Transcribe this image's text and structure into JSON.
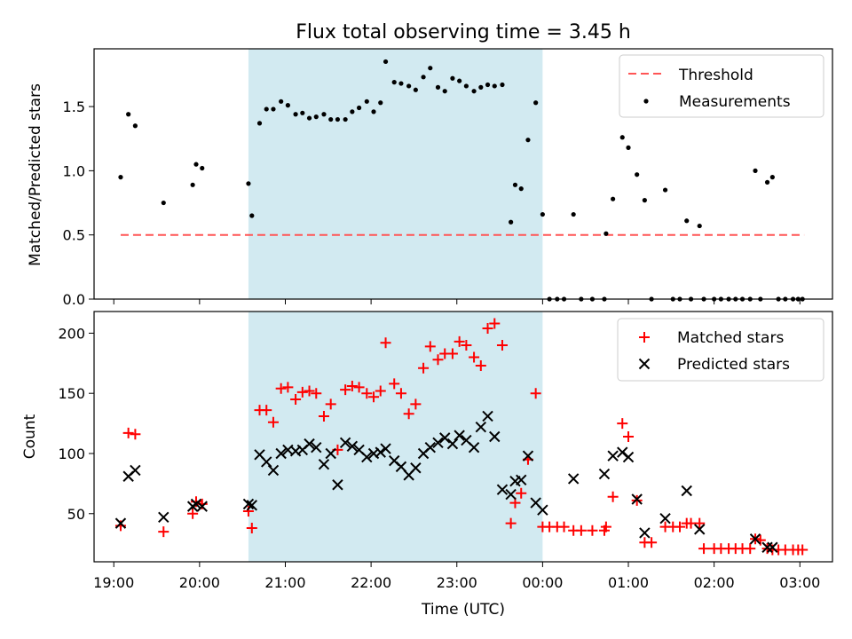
{
  "chart_data": {
    "title": "Flux total observing time = 3.45 h",
    "xlabel": "Time (UTC)",
    "xticks": [
      "19:00",
      "20:00",
      "21:00",
      "22:00",
      "23:00",
      "00:00",
      "01:00",
      "02:00",
      "03:00"
    ],
    "xlim_hours": [
      18.77,
      27.38
    ],
    "shaded_interval_hours": [
      20.57,
      24.0
    ],
    "shade_color": "#add8e6",
    "top": {
      "type": "scatter",
      "ylabel": "Matched/Predicted stars",
      "ylim": [
        0,
        1.95
      ],
      "yticks": [
        "0.0",
        "0.5",
        "1.0",
        "1.5"
      ],
      "legend_position": "upper right",
      "threshold": {
        "name": "Threshold",
        "value": 0.5,
        "x_range_hours": [
          19.08,
          27.05
        ],
        "color": "#ff5555"
      },
      "measurements": {
        "name": "Measurements",
        "color": "#000000",
        "x": [
          19.08,
          19.17,
          19.25,
          19.58,
          19.92,
          19.96,
          20.03,
          20.57,
          20.61,
          20.7,
          20.78,
          20.86,
          20.95,
          21.03,
          21.12,
          21.2,
          21.28,
          21.36,
          21.45,
          21.53,
          21.61,
          21.7,
          21.78,
          21.86,
          21.95,
          22.03,
          22.11,
          22.17,
          22.27,
          22.35,
          22.44,
          22.52,
          22.61,
          22.69,
          22.78,
          22.86,
          22.95,
          23.03,
          23.11,
          23.2,
          23.28,
          23.36,
          23.44,
          23.53,
          23.63,
          23.68,
          23.75,
          23.83,
          23.92,
          24.0,
          24.08,
          24.17,
          24.25,
          24.36,
          24.45,
          24.58,
          24.72,
          24.74,
          24.82,
          24.93,
          25.0,
          25.1,
          25.19,
          25.27,
          25.43,
          25.52,
          25.6,
          25.68,
          25.73,
          25.83,
          25.88,
          26.0,
          26.08,
          26.17,
          26.25,
          26.33,
          26.42,
          26.48,
          26.54,
          26.62,
          26.68,
          26.75,
          26.83,
          26.92,
          26.98,
          27.03
        ],
        "y": [
          0.95,
          1.44,
          1.35,
          0.75,
          0.89,
          1.05,
          1.02,
          0.9,
          0.65,
          1.37,
          1.48,
          1.48,
          1.54,
          1.51,
          1.44,
          1.45,
          1.41,
          1.42,
          1.44,
          1.4,
          1.4,
          1.4,
          1.46,
          1.49,
          1.54,
          1.46,
          1.53,
          1.85,
          1.69,
          1.68,
          1.66,
          1.63,
          1.73,
          1.8,
          1.65,
          1.62,
          1.72,
          1.7,
          1.66,
          1.62,
          1.65,
          1.67,
          1.66,
          1.67,
          0.6,
          0.89,
          0.86,
          1.24,
          1.53,
          0.66,
          0.0,
          0.0,
          0.0,
          0.66,
          0.0,
          0.0,
          0.0,
          0.51,
          0.78,
          1.26,
          1.18,
          0.97,
          0.77,
          0.0,
          0.85,
          0.0,
          0.0,
          0.61,
          0.0,
          0.57,
          0.0,
          0.0,
          0.0,
          0.0,
          0.0,
          0.0,
          0.0,
          1.0,
          0.0,
          0.91,
          0.95,
          0.0,
          0.0,
          0.0,
          0.0,
          0.0
        ]
      }
    },
    "bottom": {
      "type": "scatter",
      "ylabel": "Count",
      "ylim": [
        10,
        218
      ],
      "yticks": [
        "50",
        "100",
        "150",
        "200"
      ],
      "legend_position": "upper right",
      "series": [
        {
          "name": "Matched stars",
          "marker": "plus",
          "color": "#ff0000",
          "x": [
            19.08,
            19.17,
            19.25,
            19.58,
            19.92,
            19.96,
            20.03,
            20.57,
            20.61,
            20.7,
            20.78,
            20.86,
            20.95,
            21.03,
            21.12,
            21.2,
            21.28,
            21.36,
            21.45,
            21.53,
            21.61,
            21.7,
            21.78,
            21.86,
            21.95,
            22.03,
            22.11,
            22.17,
            22.27,
            22.35,
            22.44,
            22.52,
            22.61,
            22.69,
            22.78,
            22.86,
            22.95,
            23.03,
            23.11,
            23.2,
            23.28,
            23.36,
            23.44,
            23.53,
            23.63,
            23.68,
            23.75,
            23.83,
            23.92,
            24.0,
            24.08,
            24.17,
            24.25,
            24.36,
            24.45,
            24.58,
            24.72,
            24.74,
            24.82,
            24.93,
            25.0,
            25.1,
            25.19,
            25.27,
            25.43,
            25.52,
            25.6,
            25.68,
            25.73,
            25.83,
            25.88,
            26.0,
            26.08,
            26.17,
            26.25,
            26.33,
            26.42,
            26.48,
            26.54,
            26.62,
            26.68,
            26.75,
            26.83,
            26.92,
            26.98,
            27.03
          ],
          "y": [
            40,
            117,
            116,
            35,
            50,
            60,
            58,
            52,
            38,
            136,
            136,
            126,
            154,
            155,
            145,
            151,
            152,
            150,
            131,
            141,
            103,
            153,
            156,
            155,
            150,
            147,
            152,
            192,
            158,
            150,
            133,
            141,
            171,
            189,
            178,
            183,
            183,
            193,
            190,
            180,
            173,
            204,
            208,
            190,
            42,
            59,
            67,
            95,
            150,
            39,
            39,
            39,
            39,
            36,
            36,
            36,
            36,
            39,
            64,
            125,
            114,
            61,
            26,
            26,
            39,
            39,
            39,
            42,
            42,
            42,
            21,
            21,
            21,
            21,
            21,
            21,
            21,
            29,
            28,
            21,
            20,
            20,
            20,
            20,
            20,
            20
          ]
        },
        {
          "name": "Predicted stars",
          "marker": "x",
          "color": "#000000",
          "x": [
            19.08,
            19.17,
            19.25,
            19.58,
            19.92,
            19.96,
            20.03,
            20.57,
            20.61,
            20.7,
            20.78,
            20.86,
            20.95,
            21.03,
            21.12,
            21.2,
            21.28,
            21.36,
            21.45,
            21.53,
            21.61,
            21.7,
            21.78,
            21.86,
            21.95,
            22.03,
            22.11,
            22.17,
            22.27,
            22.35,
            22.44,
            22.52,
            22.61,
            22.69,
            22.78,
            22.86,
            22.95,
            23.03,
            23.11,
            23.2,
            23.28,
            23.36,
            23.44,
            23.53,
            23.63,
            23.68,
            23.75,
            23.83,
            23.92,
            24.0,
            24.36,
            24.72,
            24.82,
            24.93,
            25.0,
            25.1,
            25.19,
            25.43,
            25.68,
            25.83,
            26.48,
            26.62,
            26.68
          ],
          "y": [
            42,
            81,
            86,
            47,
            56,
            58,
            56,
            58,
            57,
            99,
            93,
            86,
            100,
            103,
            102,
            103,
            108,
            105,
            91,
            100,
            74,
            109,
            106,
            103,
            97,
            100,
            101,
            104,
            94,
            89,
            82,
            88,
            100,
            105,
            109,
            113,
            108,
            115,
            111,
            105,
            122,
            131,
            114,
            70,
            66,
            77,
            78,
            98,
            59,
            53,
            79,
            83,
            98,
            101,
            97,
            62,
            34,
            46,
            69,
            37,
            29,
            22,
            22
          ]
        }
      ]
    }
  }
}
